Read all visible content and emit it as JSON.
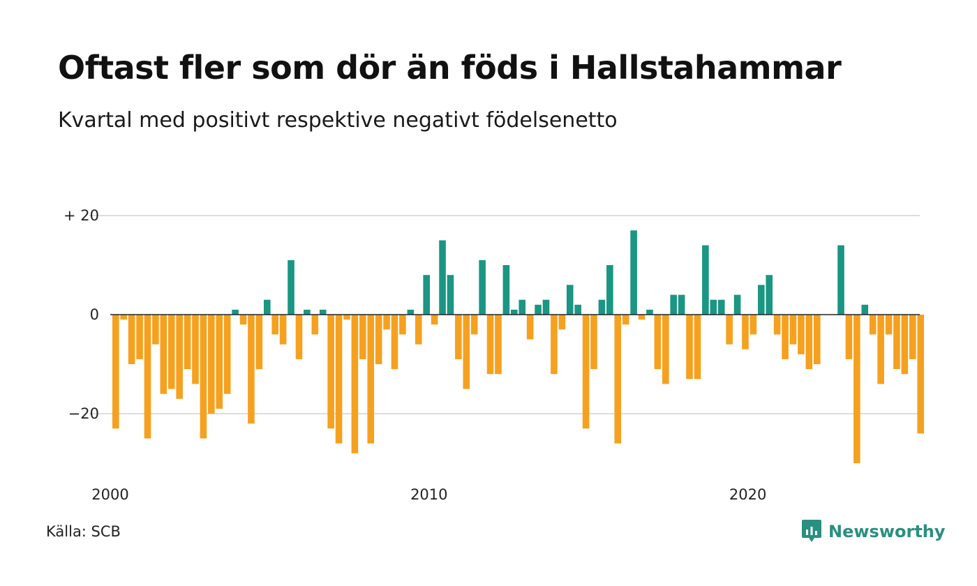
{
  "title": "Oftast fler som dör än föds i Hallstahammar",
  "subtitle": "Kvartal med positivt respektive negativt födelsenetto",
  "source": "Källa: SCB",
  "brand": {
    "name": "Newsworthy",
    "icon": "newsworthy-logo-icon",
    "color": "#2a8f80"
  },
  "colors": {
    "positive": "#1a9683",
    "negative": "#f5a11f",
    "grid": "#dddddd",
    "zero_line": "#222222"
  },
  "chart_data": {
    "type": "bar",
    "title": "Oftast fler som dör än föds i Hallstahammar",
    "subtitle": "Kvartal med positivt respektive negativt födelsenetto",
    "xlabel": "",
    "ylabel": "",
    "x_start": 2000,
    "ylim": [
      -30,
      20
    ],
    "y_ticks": [
      {
        "value": 20,
        "label": "+ 20"
      },
      {
        "value": 0,
        "label": "0"
      },
      {
        "value": -20,
        "label": "−20"
      }
    ],
    "x_ticks": [
      {
        "value": 2000,
        "label": "2000"
      },
      {
        "value": 2010,
        "label": "2010"
      },
      {
        "value": 2020,
        "label": "2020"
      }
    ],
    "grid": true,
    "values": [
      -23,
      -1,
      -10,
      -9,
      -25,
      -6,
      -16,
      -15,
      -17,
      -11,
      -14,
      -25,
      -20,
      -19,
      -16,
      1,
      -2,
      -22,
      -11,
      3,
      -4,
      -6,
      11,
      -9,
      1,
      -4,
      1,
      -23,
      -26,
      -1,
      -28,
      -9,
      -26,
      -10,
      -3,
      -11,
      -4,
      1,
      -6,
      8,
      -2,
      15,
      8,
      -9,
      -15,
      -4,
      11,
      -12,
      -12,
      10,
      1,
      3,
      -5,
      2,
      3,
      -12,
      -3,
      6,
      2,
      -23,
      -11,
      3,
      10,
      -26,
      -2,
      17,
      -1,
      1,
      -11,
      -14,
      4,
      4,
      -13,
      -13,
      14,
      3,
      3,
      -6,
      4,
      -7,
      -4,
      6,
      8,
      -4,
      -9,
      -6,
      -8,
      -11,
      -10,
      0,
      0,
      14,
      -9,
      -30,
      2,
      -4,
      -14,
      -4,
      -11,
      -12,
      -9,
      -24
    ]
  }
}
